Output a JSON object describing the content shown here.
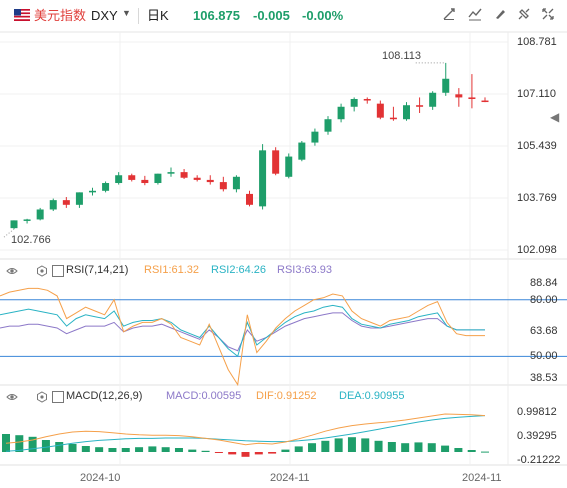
{
  "header": {
    "name": "美元指数",
    "symbol": "DXY",
    "period": "日K",
    "price": "106.875",
    "change": "-0.005",
    "change_pct": "-0.00%"
  },
  "toolbar": {
    "icons": [
      "drawing-tool-icon",
      "indicator-icon",
      "brush-icon",
      "eraser-icon",
      "fullscreen-icon",
      "settings-icon"
    ]
  },
  "main_chart": {
    "y_labels": [
      "108.781",
      "107.110",
      "105.439",
      "103.769",
      "102.098"
    ],
    "high_label": "108.113",
    "low_label": "102.766",
    "candles": [
      {
        "o": 102.8,
        "h": 103.05,
        "l": 102.77,
        "c": 103.05
      },
      {
        "o": 103.05,
        "h": 103.1,
        "l": 102.95,
        "c": 103.08
      },
      {
        "o": 103.08,
        "h": 103.45,
        "l": 103.05,
        "c": 103.4
      },
      {
        "o": 103.4,
        "h": 103.75,
        "l": 103.35,
        "c": 103.7
      },
      {
        "o": 103.7,
        "h": 103.8,
        "l": 103.45,
        "c": 103.55
      },
      {
        "o": 103.55,
        "h": 103.95,
        "l": 103.45,
        "c": 103.95
      },
      {
        "o": 103.95,
        "h": 104.1,
        "l": 103.85,
        "c": 104.0
      },
      {
        "o": 104.0,
        "h": 104.3,
        "l": 103.95,
        "c": 104.25
      },
      {
        "o": 104.25,
        "h": 104.6,
        "l": 104.2,
        "c": 104.5
      },
      {
        "o": 104.5,
        "h": 104.55,
        "l": 104.3,
        "c": 104.35
      },
      {
        "o": 104.35,
        "h": 104.48,
        "l": 104.18,
        "c": 104.25
      },
      {
        "o": 104.25,
        "h": 104.55,
        "l": 104.2,
        "c": 104.55
      },
      {
        "o": 104.55,
        "h": 104.75,
        "l": 104.45,
        "c": 104.6
      },
      {
        "o": 104.6,
        "h": 104.7,
        "l": 104.38,
        "c": 104.42
      },
      {
        "o": 104.42,
        "h": 104.5,
        "l": 104.3,
        "c": 104.35
      },
      {
        "o": 104.35,
        "h": 104.5,
        "l": 104.2,
        "c": 104.28
      },
      {
        "o": 104.28,
        "h": 104.45,
        "l": 103.98,
        "c": 104.05
      },
      {
        "o": 104.05,
        "h": 104.5,
        "l": 103.95,
        "c": 104.45
      },
      {
        "o": 103.9,
        "h": 104.0,
        "l": 103.5,
        "c": 103.55
      },
      {
        "o": 103.5,
        "h": 105.5,
        "l": 103.4,
        "c": 105.3
      },
      {
        "o": 105.3,
        "h": 105.4,
        "l": 104.5,
        "c": 104.55
      },
      {
        "o": 104.45,
        "h": 105.2,
        "l": 104.4,
        "c": 105.1
      },
      {
        "o": 105.0,
        "h": 105.6,
        "l": 104.95,
        "c": 105.55
      },
      {
        "o": 105.55,
        "h": 106.0,
        "l": 105.45,
        "c": 105.9
      },
      {
        "o": 105.9,
        "h": 106.4,
        "l": 105.8,
        "c": 106.3
      },
      {
        "o": 106.3,
        "h": 106.8,
        "l": 106.2,
        "c": 106.7
      },
      {
        "o": 106.7,
        "h": 107.0,
        "l": 106.55,
        "c": 106.95
      },
      {
        "o": 106.95,
        "h": 107.0,
        "l": 106.8,
        "c": 106.9
      },
      {
        "o": 106.8,
        "h": 106.9,
        "l": 106.3,
        "c": 106.35
      },
      {
        "o": 106.35,
        "h": 106.7,
        "l": 106.25,
        "c": 106.3
      },
      {
        "o": 106.3,
        "h": 106.85,
        "l": 106.25,
        "c": 106.75
      },
      {
        "o": 106.75,
        "h": 107.0,
        "l": 106.5,
        "c": 106.7
      },
      {
        "o": 106.7,
        "h": 107.2,
        "l": 106.6,
        "c": 107.15
      },
      {
        "o": 107.15,
        "h": 108.11,
        "l": 107.05,
        "c": 107.6
      },
      {
        "o": 107.1,
        "h": 107.3,
        "l": 106.7,
        "c": 107.0
      },
      {
        "o": 107.0,
        "h": 107.75,
        "l": 106.65,
        "c": 106.95
      },
      {
        "o": 106.9,
        "h": 107.0,
        "l": 106.85,
        "c": 106.88
      }
    ]
  },
  "rsi": {
    "title": "RSI(7,14,21)",
    "rsi1": "RSI1:61.32",
    "rsi2": "RSI2:64.26",
    "rsi3": "RSI3:63.93",
    "y_labels": [
      "88.84",
      "80.00",
      "63.68",
      "50.00",
      "38.53"
    ],
    "series": {
      "rsi1": [
        82,
        84,
        85,
        86,
        86,
        85,
        82,
        70,
        73,
        76,
        74,
        72,
        80,
        63,
        66,
        68,
        68,
        70,
        67,
        60,
        58,
        56,
        67,
        55,
        43,
        35,
        72,
        52,
        58,
        65,
        70,
        74,
        77,
        80,
        81,
        83,
        82,
        74,
        70,
        68,
        66,
        69,
        70,
        71,
        74,
        77,
        79,
        68,
        62,
        61,
        61,
        61
      ],
      "rsi2": [
        72,
        73,
        74,
        75,
        74,
        73,
        72,
        66,
        70,
        72,
        71,
        70,
        74,
        66,
        68,
        69,
        69,
        70,
        68,
        64,
        62,
        60,
        66,
        60,
        54,
        50,
        68,
        56,
        60,
        64,
        68,
        71,
        73,
        74,
        76,
        77,
        76,
        70,
        67,
        66,
        65,
        67,
        68,
        69,
        71,
        72,
        73,
        66,
        64,
        64,
        64,
        64
      ],
      "rsi3": [
        65,
        66,
        66,
        67,
        67,
        66,
        65,
        62,
        64,
        66,
        66,
        66,
        68,
        63,
        65,
        66,
        66,
        67,
        65,
        63,
        61,
        59,
        64,
        60,
        55,
        53,
        64,
        58,
        60,
        63,
        66,
        68,
        70,
        71,
        72,
        73,
        73,
        69,
        66,
        65,
        65,
        66,
        67,
        68,
        69,
        70,
        70,
        66,
        64,
        64,
        64,
        64
      ]
    }
  },
  "macd": {
    "title": "MACD(12,26,9)",
    "macd": "MACD:0.00595",
    "dif": "DIF:0.91252",
    "dea": "DEA:0.90955",
    "y_labels": [
      "0.99812",
      "0.39295",
      "-0.21222"
    ],
    "hist": [
      0.45,
      0.42,
      0.38,
      0.3,
      0.25,
      0.2,
      0.15,
      0.12,
      0.1,
      0.1,
      0.12,
      0.14,
      0.12,
      0.1,
      0.06,
      0.03,
      -0.02,
      -0.06,
      -0.12,
      -0.06,
      -0.04,
      0.06,
      0.14,
      0.22,
      0.28,
      0.34,
      0.37,
      0.34,
      0.28,
      0.25,
      0.22,
      0.24,
      0.22,
      0.16,
      0.1,
      0.05,
      0.01
    ],
    "dif_series": [
      0.22,
      0.25,
      0.3,
      0.38,
      0.45,
      0.5,
      0.52,
      0.51,
      0.48,
      0.45,
      0.43,
      0.42,
      0.42,
      0.41,
      0.38,
      0.34,
      0.3,
      0.24,
      0.18,
      0.22,
      0.2,
      0.25,
      0.33,
      0.42,
      0.52,
      0.6,
      0.66,
      0.7,
      0.73,
      0.76,
      0.8,
      0.85,
      0.9,
      0.95,
      0.94,
      0.93,
      0.91
    ],
    "dea_series": [
      0.02,
      0.04,
      0.08,
      0.12,
      0.17,
      0.22,
      0.26,
      0.29,
      0.31,
      0.33,
      0.34,
      0.34,
      0.35,
      0.35,
      0.35,
      0.34,
      0.32,
      0.3,
      0.28,
      0.27,
      0.26,
      0.26,
      0.28,
      0.31,
      0.35,
      0.4,
      0.45,
      0.51,
      0.57,
      0.63,
      0.69,
      0.75,
      0.8,
      0.84,
      0.87,
      0.89,
      0.91
    ]
  },
  "x_axis": [
    "2024-10",
    "2024-11",
    "2024-11"
  ],
  "colors": {
    "up": "#1e9e6a",
    "down": "#e23234",
    "rsi1": "#f5a04a",
    "rsi2": "#2ab3c4",
    "rsi3": "#8c78c8",
    "dif": "#f5a04a",
    "dea": "#2ab3c4",
    "ref_line": "#3a86d8"
  }
}
